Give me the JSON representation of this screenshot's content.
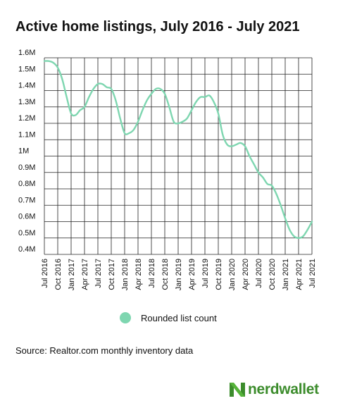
{
  "title": "Active home listings, July 2016 - July 2021",
  "legend_label": "Rounded list count",
  "source": "Source: Realtor.com monthly inventory data",
  "logo_text": "nerdwallet",
  "colors": {
    "line": "#7ed6b0",
    "grid": "#222222",
    "logo": "#3c8c2c"
  },
  "chart_data": {
    "type": "line",
    "title": "Active home listings, July 2016 - July 2021",
    "xlabel": "",
    "ylabel": "",
    "ylim": [
      0.4,
      1.6
    ],
    "y_ticks": [
      {
        "value": 0.4,
        "label": "0.4M"
      },
      {
        "value": 0.5,
        "label": "0.5M"
      },
      {
        "value": 0.6,
        "label": "0.6M"
      },
      {
        "value": 0.7,
        "label": "0.7M"
      },
      {
        "value": 0.8,
        "label": "0.8M"
      },
      {
        "value": 0.9,
        "label": "0.9M"
      },
      {
        "value": 1.0,
        "label": "1M"
      },
      {
        "value": 1.1,
        "label": "1.1M"
      },
      {
        "value": 1.2,
        "label": "1.2M"
      },
      {
        "value": 1.3,
        "label": "1.3M"
      },
      {
        "value": 1.4,
        "label": "1.4M"
      },
      {
        "value": 1.5,
        "label": "1.5M"
      },
      {
        "value": 1.6,
        "label": "1.6M"
      }
    ],
    "x_ticks": [
      "Jul 2016",
      "Oct 2016",
      "Jan 2017",
      "Apr 2017",
      "Jul 2017",
      "Oct 2017",
      "Jan 2018",
      "Apr 2018",
      "Jul 2018",
      "Oct 2018",
      "Jan 2019",
      "Apr 2019",
      "Jul 2019",
      "Oct 2019",
      "Jan 2020",
      "Apr 2020",
      "Jul 2020",
      "Oct 2020",
      "Jan 2021",
      "Apr 2021",
      "Jul 2021"
    ],
    "grid": true,
    "legend_position": "bottom",
    "series": [
      {
        "name": "Rounded list count",
        "values": [
          1.58,
          1.58,
          1.57,
          1.54,
          1.47,
          1.36,
          1.26,
          1.25,
          1.28,
          1.3,
          1.36,
          1.41,
          1.44,
          1.44,
          1.42,
          1.41,
          1.34,
          1.23,
          1.14,
          1.14,
          1.16,
          1.21,
          1.28,
          1.34,
          1.38,
          1.41,
          1.41,
          1.38,
          1.3,
          1.21,
          1.2,
          1.21,
          1.23,
          1.28,
          1.33,
          1.36,
          1.36,
          1.37,
          1.33,
          1.26,
          1.13,
          1.07,
          1.06,
          1.07,
          1.08,
          1.06,
          1.0,
          0.95,
          0.9,
          0.87,
          0.83,
          0.82,
          0.77,
          0.7,
          0.62,
          0.55,
          0.51,
          0.5,
          0.51,
          0.55,
          0.6
        ]
      }
    ]
  }
}
